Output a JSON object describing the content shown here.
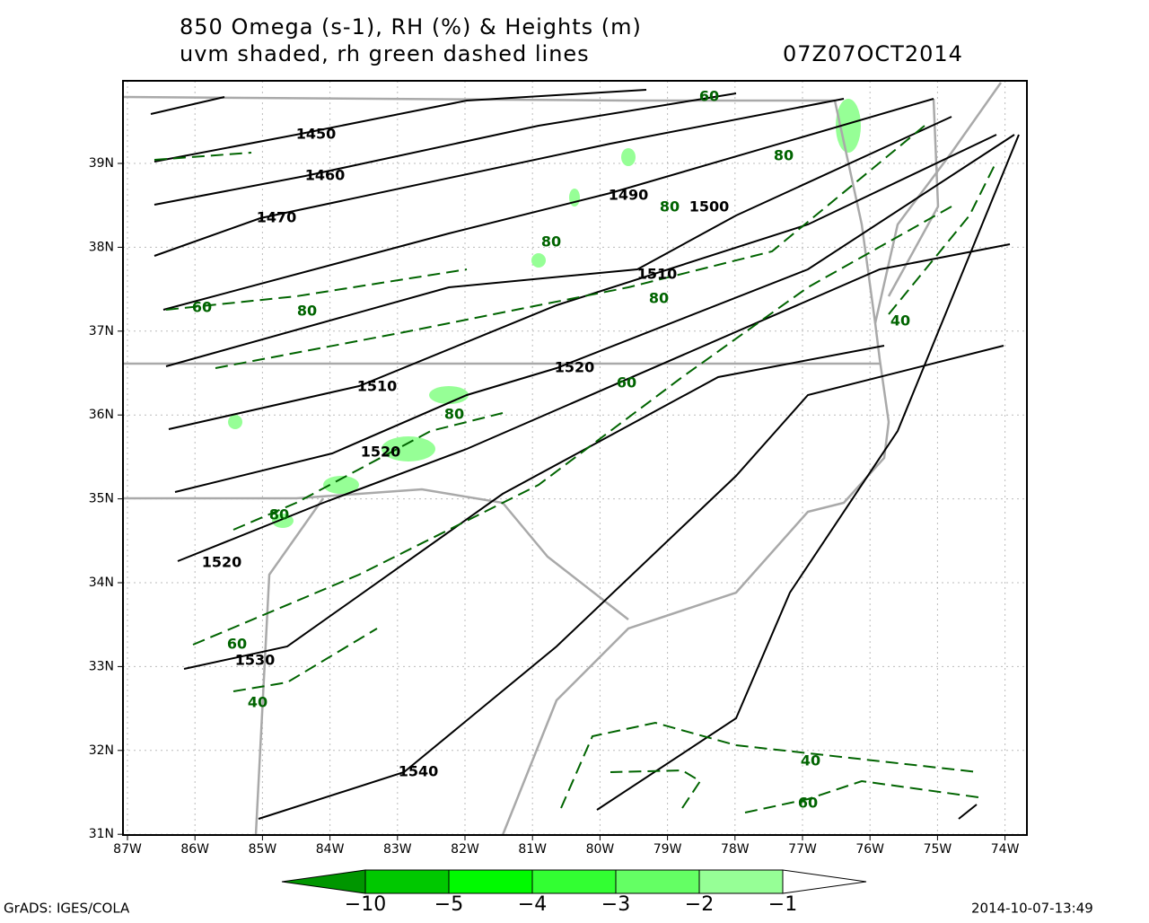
{
  "header": {
    "title_line1": "850 Omega (s-1), RH (%) & Heights (m)",
    "title_line2": "uvm shaded, rh green dashed lines",
    "valid_time": "07Z07OCT2014"
  },
  "map": {
    "lat_labels": [
      "39N",
      "38N",
      "37N",
      "36N",
      "35N",
      "34N",
      "33N",
      "32N",
      "31N"
    ],
    "lon_labels": [
      "87W",
      "86W",
      "85W",
      "84W",
      "83W",
      "82W",
      "81W",
      "80W",
      "79W",
      "78W",
      "77W",
      "76W",
      "75W",
      "74W"
    ],
    "height_labels": [
      "1450",
      "1460",
      "1470",
      "1490",
      "1500",
      "1510",
      "1510",
      "1520",
      "1520",
      "1520",
      "1530",
      "1540"
    ],
    "rh_labels": [
      "60",
      "80",
      "80",
      "80",
      "80",
      "60",
      "80",
      "80",
      "60",
      "80",
      "60",
      "40",
      "40",
      "40",
      "60"
    ],
    "height_color": "#000000",
    "rh_color": "#006400",
    "map_color": "#a9a9a9"
  },
  "colorbar": {
    "labels": [
      "−10",
      "−5",
      "−4",
      "−3",
      "−2",
      "−1"
    ],
    "colors": [
      "#009600",
      "#00c800",
      "#00fa00",
      "#32ff32",
      "#64ff64",
      "#96ff96",
      "#ffffff"
    ]
  },
  "footer": {
    "left": "GrADS: IGES/COLA",
    "right": "2014-10-07-13:49"
  }
}
